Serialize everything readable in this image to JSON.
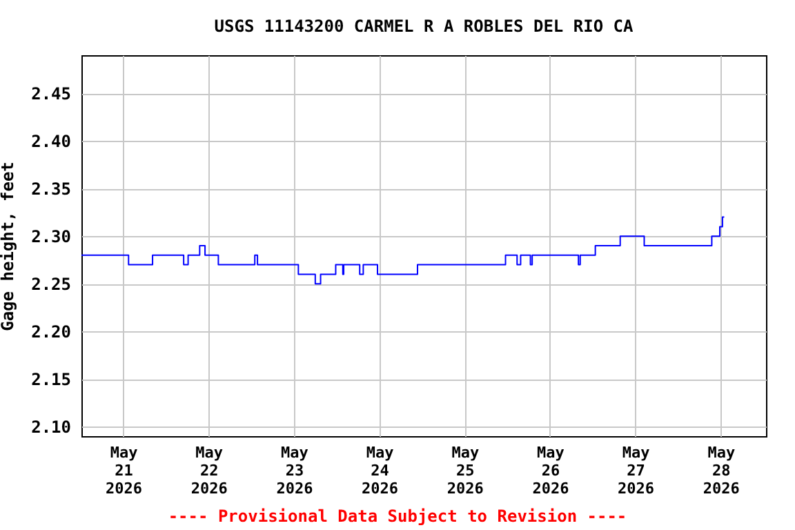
{
  "chart_data": {
    "type": "step",
    "title": "USGS 11143200 CARMEL R A ROBLES DEL RIO CA",
    "ylabel": "Gage height, feet",
    "annotations": [
      "---- Provisional Data Subject to Revision ----"
    ],
    "x": [
      "2026-05-20T12:15",
      "2026-05-21T01:30",
      "2026-05-21T08:15",
      "2026-05-21T17:00",
      "2026-05-21T18:15",
      "2026-05-21T21:30",
      "2026-05-21T23:00",
      "2026-05-22T02:45",
      "2026-05-22T13:00",
      "2026-05-22T13:45",
      "2026-05-23T01:15",
      "2026-05-23T06:00",
      "2026-05-23T07:30",
      "2026-05-23T11:45",
      "2026-05-23T13:45",
      "2026-05-23T14:00",
      "2026-05-23T18:30",
      "2026-05-23T19:30",
      "2026-05-23T23:30",
      "2026-05-24T10:45",
      "2026-05-25T11:30",
      "2026-05-25T14:45",
      "2026-05-25T15:45",
      "2026-05-25T18:30",
      "2026-05-25T19:00",
      "2026-05-26T08:00",
      "2026-05-26T08:30",
      "2026-05-26T12:45",
      "2026-05-26T19:45",
      "2026-05-27T02:30",
      "2026-05-27T21:30",
      "2026-05-27T23:45",
      "2026-05-28T00:30",
      "2026-05-28T01:00"
    ],
    "series": [
      {
        "color": "#0000ff",
        "values": [
          2.28,
          2.27,
          2.28,
          2.27,
          2.28,
          2.29,
          2.28,
          2.27,
          2.28,
          2.27,
          2.26,
          2.25,
          2.26,
          2.27,
          2.26,
          2.27,
          2.26,
          2.27,
          2.26,
          2.27,
          2.28,
          2.27,
          2.28,
          2.27,
          2.28,
          2.27,
          2.28,
          2.29,
          2.3,
          2.29,
          2.3,
          2.31,
          2.32,
          2.32
        ]
      }
    ],
    "xlim": [
      "2026-05-20T12:15",
      "2026-05-28T12:45"
    ],
    "xticks": [
      {
        "value": "2026-05-21",
        "label": "May\n21\n2026"
      },
      {
        "value": "2026-05-22",
        "label": "May\n22\n2026"
      },
      {
        "value": "2026-05-23",
        "label": "May\n23\n2026"
      },
      {
        "value": "2026-05-24",
        "label": "May\n24\n2026"
      },
      {
        "value": "2026-05-25",
        "label": "May\n25\n2026"
      },
      {
        "value": "2026-05-26",
        "label": "May\n26\n2026"
      },
      {
        "value": "2026-05-27",
        "label": "May\n27\n2026"
      },
      {
        "value": "2026-05-28",
        "label": "May\n28\n2026"
      }
    ],
    "ylim": [
      2.09,
      2.49
    ],
    "yticks": [
      {
        "value": 2.1,
        "label": "2.10"
      },
      {
        "value": 2.15,
        "label": "2.15"
      },
      {
        "value": 2.2,
        "label": "2.20"
      },
      {
        "value": 2.25,
        "label": "2.25"
      },
      {
        "value": 2.3,
        "label": "2.30"
      },
      {
        "value": 2.35,
        "label": "2.35"
      },
      {
        "value": 2.4,
        "label": "2.40"
      },
      {
        "value": 2.45,
        "label": "2.45"
      }
    ],
    "grid": true
  }
}
